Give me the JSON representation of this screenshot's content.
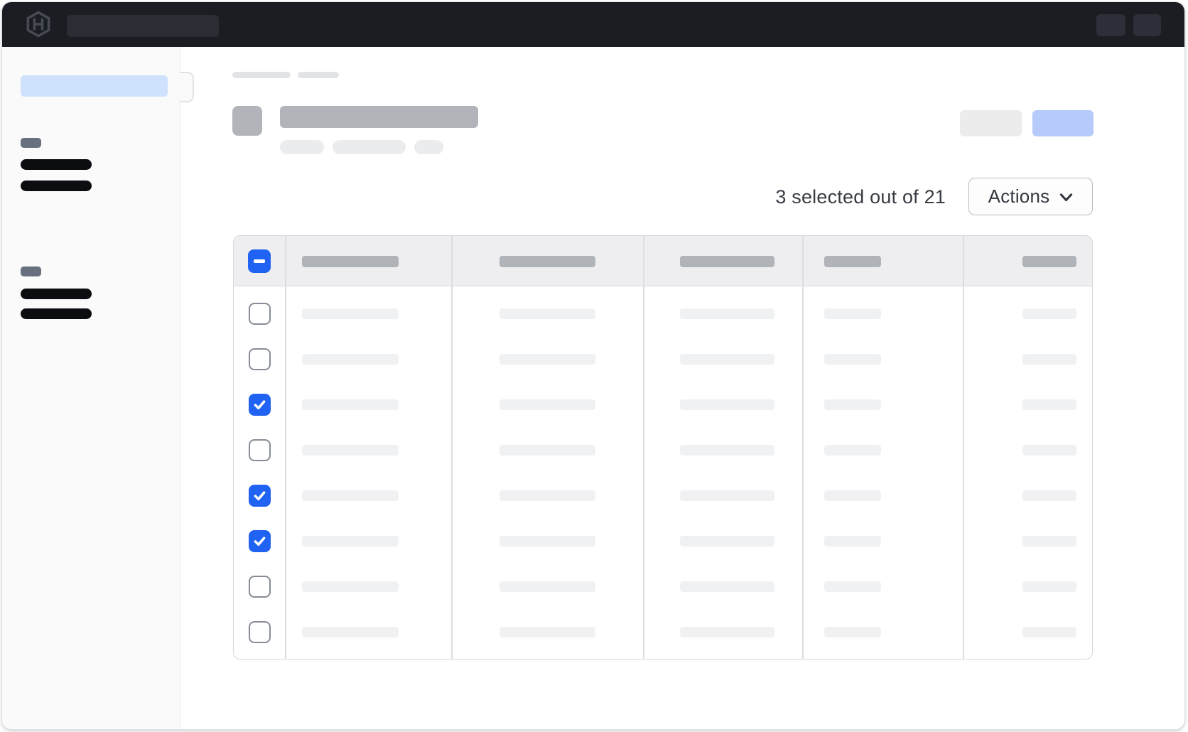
{
  "theme": {
    "accent": "#2062f2",
    "topbar-bg": "#1b1d23",
    "sidebar-selected": "#cfe2fd",
    "primary-skeleton": "#b6cbfa",
    "text-dark": "#383c43"
  },
  "topbar": {
    "logo_icon": "hashicorp-logo",
    "search_skeleton": true,
    "right_button_count": 2
  },
  "sidebar": {
    "selected_item_skeleton": true,
    "sections": [
      {
        "badge_skeleton": true,
        "item_skeletons": 2
      },
      {
        "badge_skeleton": true,
        "item_skeletons": 2
      }
    ]
  },
  "page_header": {
    "breadcrumb_skeletons": 2,
    "icon_skeleton": true,
    "title_skeleton": true,
    "badge_skeletons": 3,
    "secondary_button_skeleton": true,
    "primary_button_skeleton": true
  },
  "selection_summary": {
    "selected_count": 3,
    "total_count": 21,
    "text": "3 selected out of 21"
  },
  "actions_menu": {
    "label": "Actions",
    "icon": "chevron-down"
  },
  "table": {
    "select_all_state": "indeterminate",
    "column_count": 5,
    "rows": [
      {
        "selected": false
      },
      {
        "selected": false
      },
      {
        "selected": true
      },
      {
        "selected": false
      },
      {
        "selected": true
      },
      {
        "selected": true
      },
      {
        "selected": false
      },
      {
        "selected": false
      }
    ]
  }
}
